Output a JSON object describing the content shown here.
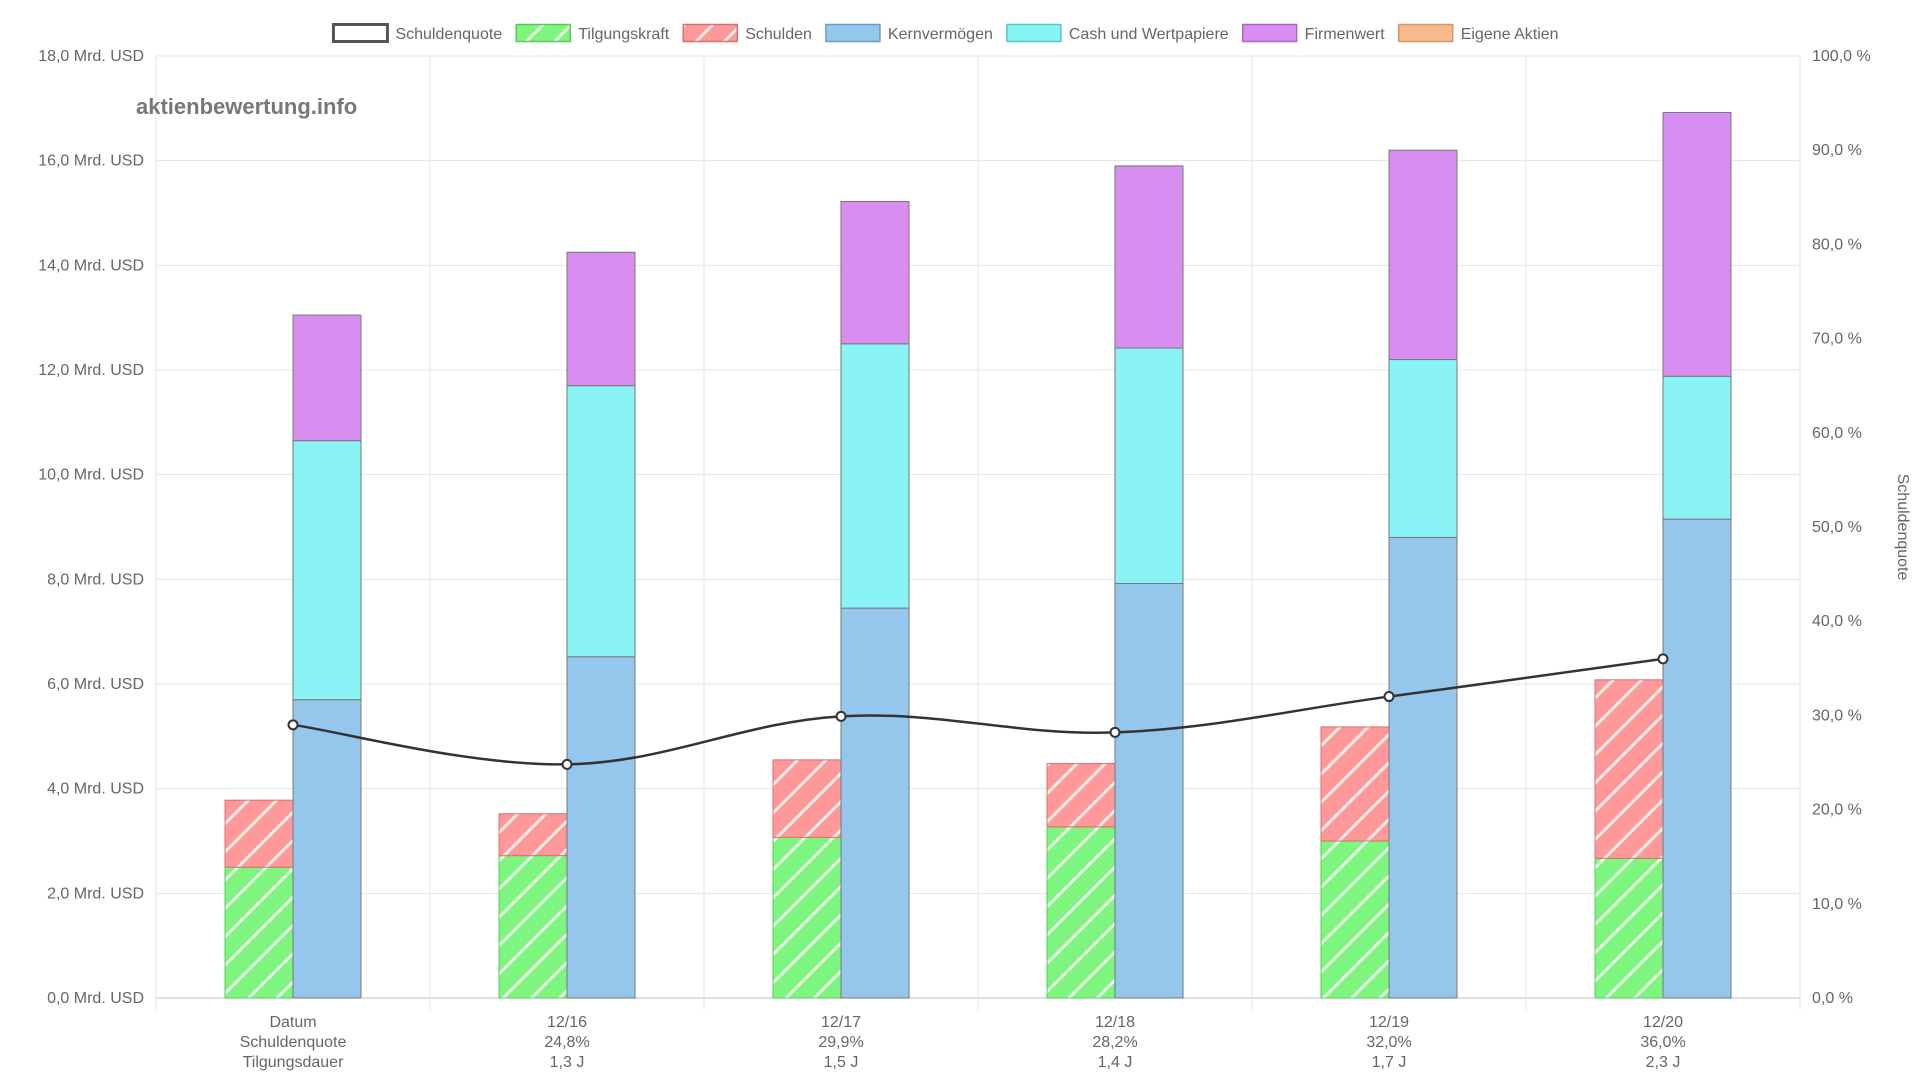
{
  "watermark": "aktienbewertung.info",
  "chart_data": {
    "type": "bar",
    "legend_position": "top",
    "grid": true,
    "categories": [
      "Datum",
      "12/16",
      "12/17",
      "12/18",
      "12/19",
      "12/20"
    ],
    "category_sublabels": [
      [
        "Schuldenquote",
        "Tilgungsdauer"
      ],
      [
        "24,8%",
        "1,3 J"
      ],
      [
        "29,9%",
        "1,5 J"
      ],
      [
        "28,2%",
        "1,4 J"
      ],
      [
        "32,0%",
        "1,7 J"
      ],
      [
        "36,0%",
        "2,3 J"
      ]
    ],
    "y_left": {
      "min": 0,
      "max": 18,
      "step": 2,
      "tick_labels": [
        "0,0 Mrd. USD",
        "2,0 Mrd. USD",
        "4,0 Mrd. USD",
        "6,0 Mrd. USD",
        "8,0 Mrd. USD",
        "10,0 Mrd. USD",
        "12,0 Mrd. USD",
        "14,0 Mrd. USD",
        "16,0 Mrd. USD",
        "18,0 Mrd. USD"
      ]
    },
    "y_right": {
      "title": "Schuldenquote",
      "min": 0,
      "max": 100,
      "step": 10,
      "tick_labels": [
        "0,0 %",
        "10,0 %",
        "20,0 %",
        "30,0 %",
        "40,0 %",
        "50,0 %",
        "60,0 %",
        "70,0 %",
        "80,0 %",
        "90,0 %",
        "100,0 %"
      ]
    },
    "legend": [
      {
        "name": "Schuldenquote",
        "fill": "#ffffff",
        "border": "#555555",
        "hatch": false
      },
      {
        "name": "Tilgungskraft",
        "fill": "#7ef57e",
        "border": "#5cc85c",
        "hatch": true
      },
      {
        "name": "Schulden",
        "fill": "#ff9898",
        "border": "#d87070",
        "hatch": true
      },
      {
        "name": "Kernvermögen",
        "fill": "#95c6ec",
        "border": "#6a9cc4",
        "hatch": false
      },
      {
        "name": "Cash und Wertpapiere",
        "fill": "#8af3f6",
        "border": "#55c9cc",
        "hatch": false
      },
      {
        "name": "Firmenwert",
        "fill": "#d88ef0",
        "border": "#a868c0",
        "hatch": false
      },
      {
        "name": "Eigene Aktien",
        "fill": "#f6ba8c",
        "border": "#d4956a",
        "hatch": false
      }
    ],
    "left_stack": {
      "Tilgungskraft": [
        2.5,
        2.72,
        3.07,
        3.27,
        3.0,
        2.67
      ],
      "Schulden_total": [
        3.78,
        3.52,
        4.55,
        4.48,
        5.18,
        6.08
      ]
    },
    "right_stack": {
      "Kernvermögen": [
        5.7,
        6.52,
        7.45,
        7.92,
        8.8,
        9.15
      ],
      "Cash_und_Wertpapiere_total": [
        10.65,
        11.7,
        12.5,
        12.42,
        12.2,
        11.88
      ],
      "Firmenwert_total": [
        13.05,
        14.25,
        15.22,
        15.9,
        16.2,
        16.92
      ]
    },
    "line": {
      "name": "Schuldenquote",
      "values_percent": [
        29.0,
        24.8,
        29.9,
        28.2,
        32.0,
        36.0
      ],
      "color": "#333333"
    }
  }
}
